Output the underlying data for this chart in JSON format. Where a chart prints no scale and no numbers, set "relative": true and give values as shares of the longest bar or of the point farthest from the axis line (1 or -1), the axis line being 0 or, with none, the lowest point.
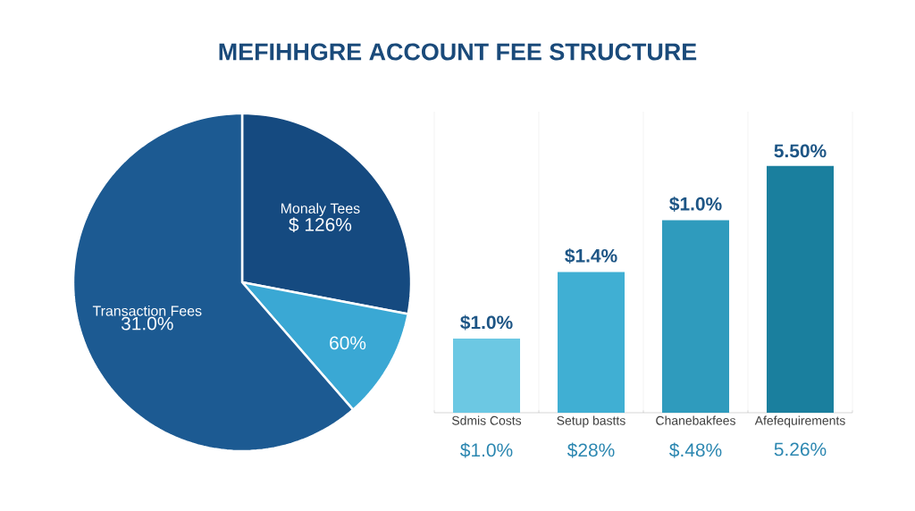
{
  "chart_data": [
    {
      "type": "pie",
      "title": "MEFIHHGRE ACCOUNT FEE STRUCTURE",
      "categories": [
        "Monaly Tees",
        null,
        "Transaction Fees"
      ],
      "values": [
        28.0,
        10.6,
        61.4
      ],
      "colors": [
        "#154a80",
        "#3aa8d4",
        "#1c5a92"
      ],
      "annotations": [
        "$ 126%",
        "60%",
        "31.0%"
      ]
    },
    {
      "type": "bar",
      "relative": true,
      "grid": true,
      "categories": [
        "Sdmis Costs",
        "Setup bastts",
        "Chanebakfees",
        "Afefequirements"
      ],
      "values": [
        0.3,
        0.57,
        0.78,
        1.0
      ],
      "colors": [
        "#6cc8e3",
        "#40afd3",
        "#2f9bbd",
        "#1a7f9e"
      ],
      "annotations": [
        "$1.0%",
        "$1.4%",
        "$1.0%",
        "5.50%",
        "$1.0%",
        "$28%",
        "$.48%",
        "5.26%"
      ]
    }
  ]
}
